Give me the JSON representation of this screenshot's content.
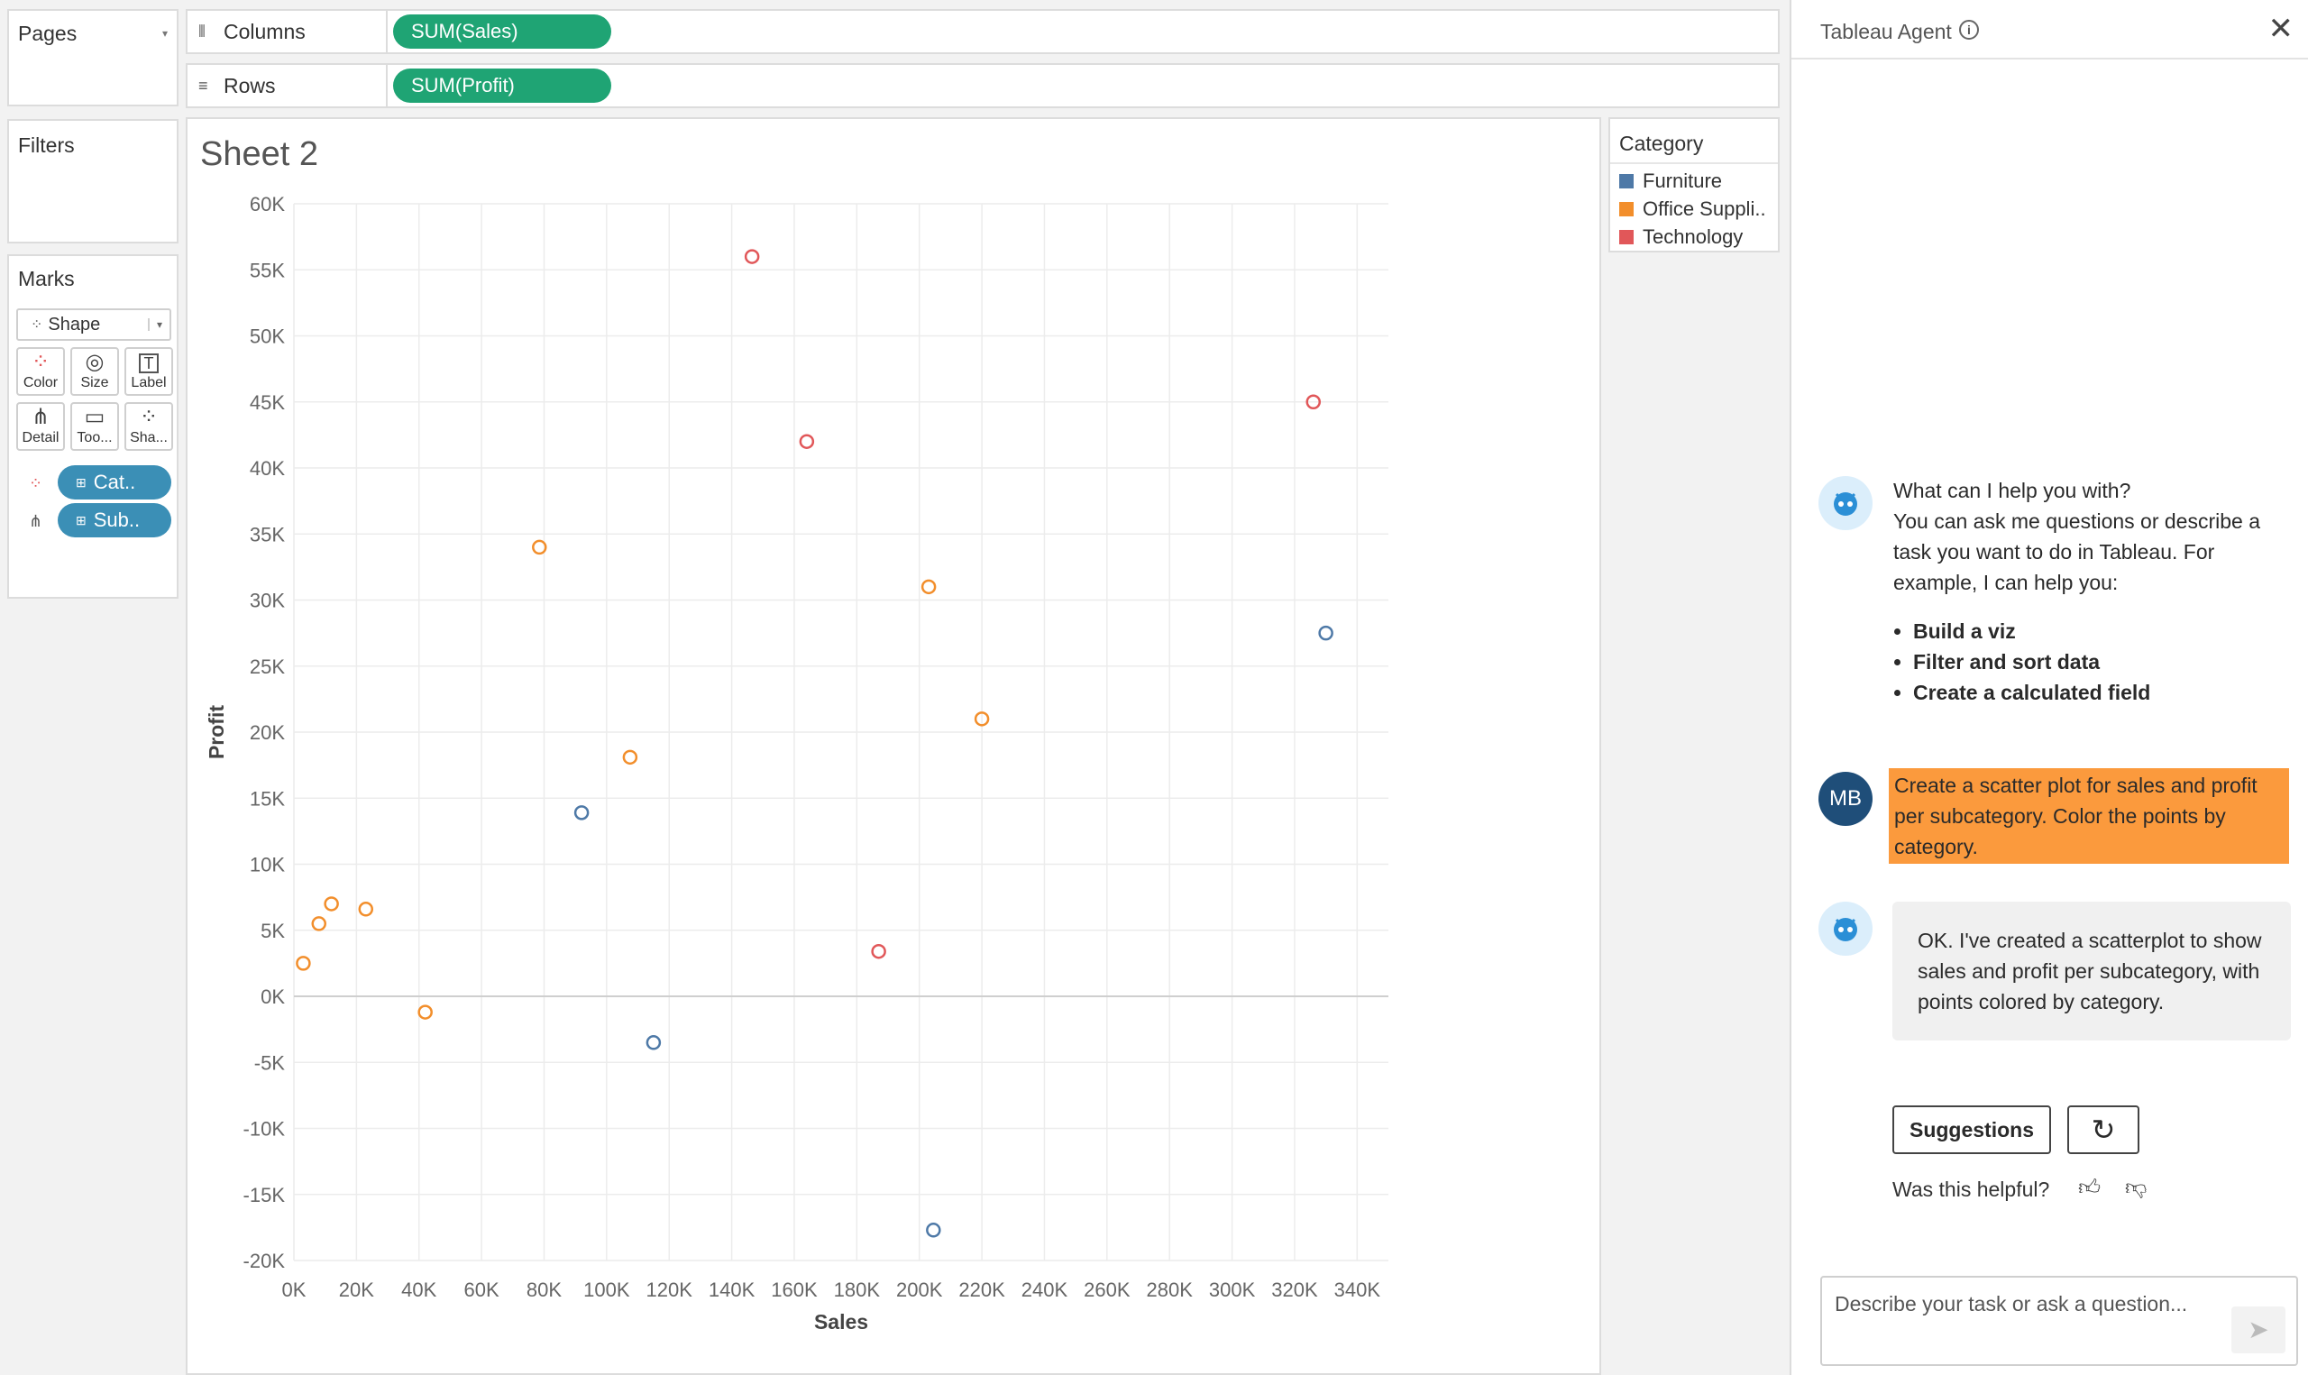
{
  "pages": {
    "title": "Pages"
  },
  "filters": {
    "title": "Filters"
  },
  "shelves": {
    "columns_label": "Columns",
    "columns_pill": "SUM(Sales)",
    "rows_label": "Rows",
    "rows_pill": "SUM(Profit)"
  },
  "marks": {
    "title": "Marks",
    "type": "Shape",
    "buttons": [
      "Color",
      "Size",
      "Label",
      "Detail",
      "Too...",
      "Sha..."
    ],
    "fields": [
      "Cat..",
      "Sub.."
    ]
  },
  "sheet": {
    "title": "Sheet 2"
  },
  "legend": {
    "title": "Category",
    "items": [
      {
        "label": "Furniture",
        "color": "#4e79a7"
      },
      {
        "label": "Office Suppli..",
        "color": "#f28e2b"
      },
      {
        "label": "Technology",
        "color": "#e15759"
      }
    ]
  },
  "chart_data": {
    "type": "scatter",
    "xlabel": "Sales",
    "ylabel": "Profit",
    "xlim": [
      0,
      350000
    ],
    "ylim": [
      -20000,
      60000
    ],
    "x_ticks": [
      "0K",
      "20K",
      "40K",
      "60K",
      "80K",
      "100K",
      "120K",
      "140K",
      "160K",
      "180K",
      "200K",
      "220K",
      "240K",
      "260K",
      "280K",
      "300K",
      "320K",
      "340K"
    ],
    "y_ticks": [
      "60K",
      "55K",
      "50K",
      "45K",
      "40K",
      "35K",
      "30K",
      "25K",
      "20K",
      "15K",
      "10K",
      "5K",
      "0K",
      "-5K",
      "-10K",
      "-15K",
      "-20K"
    ],
    "grid": true,
    "series": [
      {
        "name": "Furniture",
        "color": "#4e79a7",
        "points": [
          [
            92000,
            13900
          ],
          [
            115000,
            -3500
          ],
          [
            204500,
            -17700
          ],
          [
            330000,
            27500
          ]
        ]
      },
      {
        "name": "Office Supplies",
        "color": "#f28e2b",
        "points": [
          [
            3000,
            2500
          ],
          [
            8000,
            5500
          ],
          [
            12000,
            7000
          ],
          [
            23000,
            6600
          ],
          [
            42000,
            -1200
          ],
          [
            78500,
            34000
          ],
          [
            107500,
            18100
          ],
          [
            203000,
            31000
          ],
          [
            220000,
            21000
          ]
        ]
      },
      {
        "name": "Technology",
        "color": "#e15759",
        "points": [
          [
            146500,
            56000
          ],
          [
            164000,
            42000
          ],
          [
            187000,
            3400
          ],
          [
            326000,
            45000
          ]
        ]
      }
    ]
  },
  "agent": {
    "title": "Tableau Agent",
    "greeting": "What can I help you with?",
    "intro": "You can ask me questions or describe a task you want to do in Tableau. For example, I can help you:",
    "bullets": [
      "Build a viz",
      "Filter and sort data",
      "Create a calculated field"
    ],
    "user_initials": "MB",
    "user_message": "Create a scatter plot for sales and profit per subcategory. Color the points by category.",
    "reply": "OK. I've created a scatterplot to show sales and profit per subcategory, with points colored by category.",
    "suggestions_label": "Suggestions",
    "helpful_label": "Was this helpful?",
    "input_placeholder": "Describe your task or ask a question..."
  }
}
